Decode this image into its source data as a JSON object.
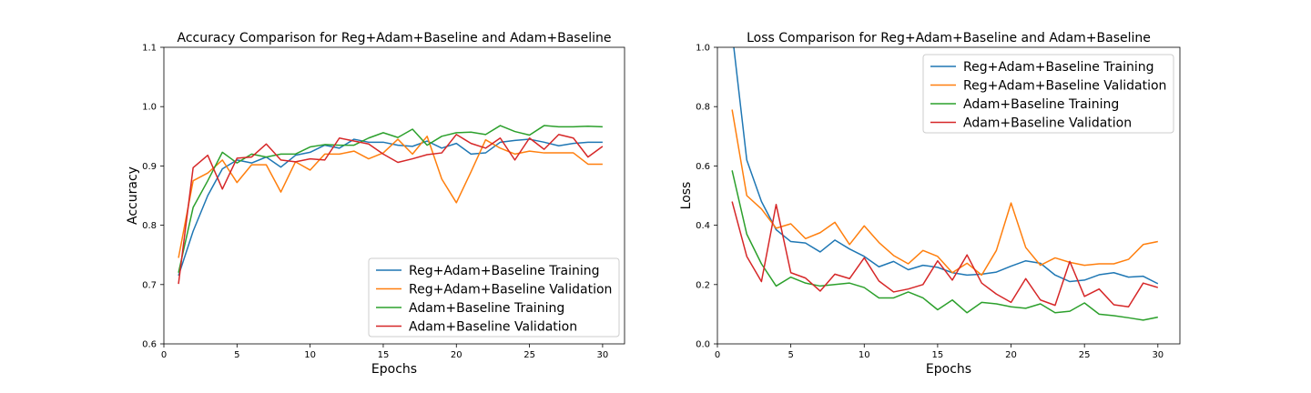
{
  "chart_data": [
    {
      "type": "line",
      "title": "Accuracy Comparison for Reg+Adam+Baseline and Adam+Baseline",
      "xlabel": "Epochs",
      "ylabel": "Accuracy",
      "xlim": [
        0,
        31.5
      ],
      "ylim": [
        0.6,
        1.1
      ],
      "xticks": [
        0,
        5,
        10,
        15,
        20,
        25,
        30
      ],
      "yticks": [
        0.6,
        0.7,
        0.8,
        0.9,
        1.0,
        1.1
      ],
      "ytick_labels": [
        "0.6",
        "0.7",
        "0.8",
        "0.9",
        "1.0",
        "1.1"
      ],
      "legend_position": "lower-right",
      "grid": false,
      "x": [
        1,
        2,
        3,
        4,
        5,
        6,
        7,
        8,
        9,
        10,
        11,
        12,
        13,
        14,
        15,
        16,
        17,
        18,
        19,
        20,
        21,
        22,
        23,
        24,
        25,
        26,
        27,
        28,
        29,
        30
      ],
      "series": [
        {
          "name": "Reg+Adam+Baseline Training",
          "color": "#1f77b4",
          "values": [
            0.715,
            0.79,
            0.85,
            0.895,
            0.91,
            0.905,
            0.915,
            0.898,
            0.918,
            0.923,
            0.935,
            0.93,
            0.945,
            0.94,
            0.94,
            0.935,
            0.933,
            0.942,
            0.93,
            0.938,
            0.92,
            0.922,
            0.94,
            0.943,
            0.945,
            0.94,
            0.934,
            0.938,
            0.94,
            0.94
          ]
        },
        {
          "name": "Reg+Adam+Baseline Validation",
          "color": "#ff7f0e",
          "values": [
            0.745,
            0.875,
            0.888,
            0.91,
            0.872,
            0.902,
            0.902,
            0.856,
            0.907,
            0.893,
            0.92,
            0.92,
            0.925,
            0.912,
            0.922,
            0.945,
            0.92,
            0.95,
            0.878,
            0.838,
            0.89,
            0.944,
            0.93,
            0.92,
            0.925,
            0.922,
            0.922,
            0.922,
            0.903,
            0.903
          ]
        },
        {
          "name": "Adam+Baseline Training",
          "color": "#2ca02c",
          "values": [
            0.72,
            0.83,
            0.875,
            0.923,
            0.905,
            0.92,
            0.915,
            0.92,
            0.92,
            0.932,
            0.936,
            0.935,
            0.935,
            0.947,
            0.956,
            0.948,
            0.962,
            0.935,
            0.95,
            0.956,
            0.957,
            0.953,
            0.968,
            0.958,
            0.952,
            0.968,
            0.966,
            0.966,
            0.967,
            0.966
          ]
        },
        {
          "name": "Adam+Baseline Validation",
          "color": "#d62728",
          "values": [
            0.701,
            0.897,
            0.918,
            0.861,
            0.913,
            0.915,
            0.937,
            0.91,
            0.907,
            0.912,
            0.91,
            0.947,
            0.942,
            0.937,
            0.92,
            0.906,
            0.912,
            0.919,
            0.922,
            0.953,
            0.938,
            0.93,
            0.947,
            0.91,
            0.947,
            0.928,
            0.953,
            0.947,
            0.915,
            0.933
          ]
        }
      ]
    },
    {
      "type": "line",
      "title": "Loss Comparison for Reg+Adam+Baseline and Adam+Baseline",
      "xlabel": "Epochs",
      "ylabel": "Loss",
      "xlim": [
        0,
        31.5
      ],
      "ylim": [
        0,
        1.0
      ],
      "xticks": [
        0,
        5,
        10,
        15,
        20,
        25,
        30
      ],
      "yticks": [
        0,
        0.2,
        0.4,
        0.6,
        0.8,
        1.0
      ],
      "ytick_labels": [
        "0.0",
        "0.2",
        "0.4",
        "0.6",
        "0.8",
        "1.0"
      ],
      "legend_position": "upper-right",
      "grid": false,
      "x": [
        1,
        2,
        3,
        4,
        5,
        6,
        7,
        8,
        9,
        10,
        11,
        12,
        13,
        14,
        15,
        16,
        17,
        18,
        19,
        20,
        21,
        22,
        23,
        24,
        25,
        26,
        27,
        28,
        29,
        30
      ],
      "series": [
        {
          "name": "Reg+Adam+Baseline Training",
          "color": "#1f77b4",
          "values": [
            1.05,
            0.62,
            0.48,
            0.385,
            0.345,
            0.34,
            0.31,
            0.35,
            0.32,
            0.295,
            0.26,
            0.278,
            0.25,
            0.265,
            0.258,
            0.24,
            0.232,
            0.235,
            0.242,
            0.262,
            0.28,
            0.272,
            0.232,
            0.21,
            0.215,
            0.233,
            0.24,
            0.225,
            0.228,
            0.203
          ]
        },
        {
          "name": "Reg+Adam+Baseline Validation",
          "color": "#ff7f0e",
          "values": [
            0.79,
            0.5,
            0.455,
            0.39,
            0.405,
            0.355,
            0.375,
            0.41,
            0.335,
            0.398,
            0.342,
            0.298,
            0.27,
            0.315,
            0.295,
            0.24,
            0.272,
            0.232,
            0.315,
            0.475,
            0.325,
            0.265,
            0.29,
            0.275,
            0.265,
            0.27,
            0.27,
            0.285,
            0.335,
            0.345
          ]
        },
        {
          "name": "Adam+Baseline Training",
          "color": "#2ca02c",
          "values": [
            0.585,
            0.37,
            0.27,
            0.195,
            0.225,
            0.205,
            0.195,
            0.2,
            0.205,
            0.19,
            0.155,
            0.155,
            0.175,
            0.155,
            0.115,
            0.148,
            0.105,
            0.14,
            0.135,
            0.125,
            0.12,
            0.135,
            0.105,
            0.11,
            0.138,
            0.1,
            0.095,
            0.088,
            0.08,
            0.09
          ]
        },
        {
          "name": "Adam+Baseline Validation",
          "color": "#d62728",
          "values": [
            0.48,
            0.295,
            0.21,
            0.47,
            0.24,
            0.222,
            0.178,
            0.235,
            0.22,
            0.29,
            0.212,
            0.175,
            0.185,
            0.2,
            0.28,
            0.215,
            0.3,
            0.205,
            0.168,
            0.14,
            0.22,
            0.148,
            0.13,
            0.278,
            0.16,
            0.185,
            0.132,
            0.125,
            0.205,
            0.19
          ]
        }
      ]
    }
  ]
}
